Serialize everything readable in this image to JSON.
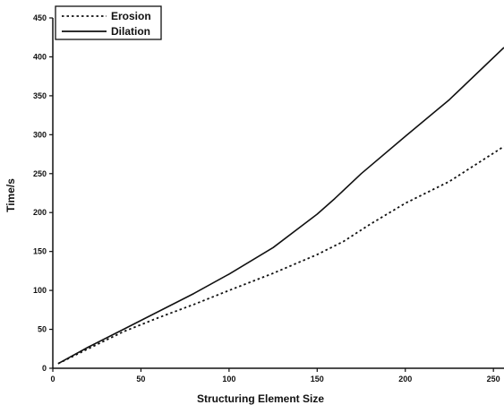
{
  "chart_data": {
    "type": "line",
    "title": "",
    "xlabel": "Structuring Element Size",
    "ylabel": "Time/s",
    "xlim": [
      0,
      256
    ],
    "ylim": [
      0,
      450
    ],
    "xticks": [
      0,
      50,
      100,
      150,
      200,
      250
    ],
    "yticks": [
      0,
      50,
      100,
      150,
      200,
      250,
      300,
      350,
      400,
      450
    ],
    "xtick_labels": [
      "0",
      "50",
      "100",
      "150",
      "200",
      "250"
    ],
    "ytick_labels": [
      "0",
      "50",
      "100",
      "150",
      "200",
      "250",
      "300",
      "350",
      "400",
      "450"
    ],
    "grid": false,
    "legend_position": "top-left",
    "series": [
      {
        "name": "Erosion",
        "style": "dotted",
        "color": "#111111",
        "x": [
          3,
          20,
          40,
          60,
          80,
          100,
          125,
          150,
          165,
          180,
          200,
          225,
          256
        ],
        "y": [
          6,
          25,
          47,
          65,
          82,
          100,
          122,
          146,
          163,
          185,
          212,
          240,
          285
        ]
      },
      {
        "name": "Dilation",
        "style": "solid",
        "color": "#111111",
        "x": [
          3,
          20,
          40,
          60,
          80,
          100,
          125,
          150,
          160,
          175,
          200,
          225,
          256
        ],
        "y": [
          6,
          27,
          50,
          73,
          96,
          121,
          155,
          198,
          218,
          250,
          298,
          345,
          412
        ]
      }
    ]
  }
}
